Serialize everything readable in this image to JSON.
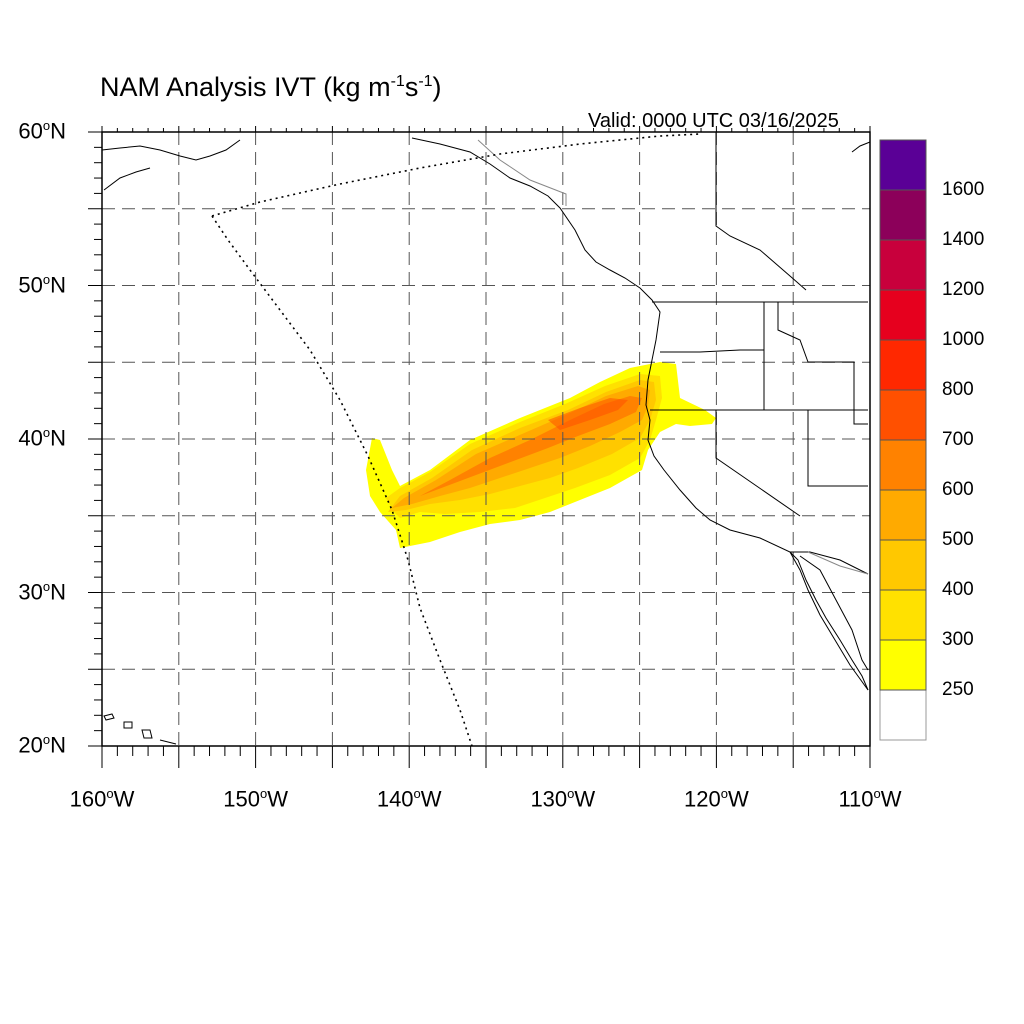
{
  "title": {
    "prefix": "NAM Analysis IVT (kg m",
    "exp1": "-1",
    "mid": "s",
    "exp2": "-1",
    "suffix": ")"
  },
  "valid": "Valid: 0000 UTC 03/16/2025",
  "degree_sup": "o",
  "map": {
    "lon_range": [
      -160,
      -110
    ],
    "lat_range": [
      20,
      60
    ],
    "grid_step_deg": 5,
    "gridlines": true,
    "lat_labels": [
      {
        "value": 60,
        "num": "60",
        "hemi": "N"
      },
      {
        "value": 50,
        "num": "50",
        "hemi": "N"
      },
      {
        "value": 40,
        "num": "40",
        "hemi": "N"
      },
      {
        "value": 30,
        "num": "30",
        "hemi": "N"
      },
      {
        "value": 20,
        "num": "20",
        "hemi": "N"
      }
    ],
    "lon_labels": [
      {
        "value": -160,
        "num": "160",
        "hemi": "W"
      },
      {
        "value": -150,
        "num": "150",
        "hemi": "W"
      },
      {
        "value": -140,
        "num": "140",
        "hemi": "W"
      },
      {
        "value": -130,
        "num": "130",
        "hemi": "W"
      },
      {
        "value": -120,
        "num": "120",
        "hemi": "W"
      },
      {
        "value": -110,
        "num": "110",
        "hemi": "W"
      }
    ]
  },
  "colorbar": {
    "levels": [
      250,
      300,
      400,
      500,
      600,
      700,
      800,
      1000,
      1200,
      1400,
      1600
    ],
    "labels": [
      "250",
      "300",
      "400",
      "500",
      "600",
      "700",
      "800",
      "1000",
      "1200",
      "1400",
      "1600"
    ],
    "colors": [
      "#ffffff",
      "#ffff00",
      "#ffe100",
      "#ffc800",
      "#ffaa00",
      "#ff8200",
      "#ff5000",
      "#ff2800",
      "#e6001e",
      "#c8003c",
      "#8c005a",
      "#5a0096"
    ]
  },
  "ivt_field": {
    "band_1": {
      "level": "250-300",
      "color": "#ffff00"
    },
    "band_2": {
      "level": "300-400",
      "color": "#ffe100"
    },
    "band_3": {
      "level": "400-500",
      "color": "#ffc800"
    },
    "band_4": {
      "level": "500-600",
      "color": "#ffaa00"
    },
    "band_5": {
      "level": "600-700",
      "color": "#ff8200"
    },
    "core_max_region": "700-800",
    "core_color": "#ff5000"
  }
}
